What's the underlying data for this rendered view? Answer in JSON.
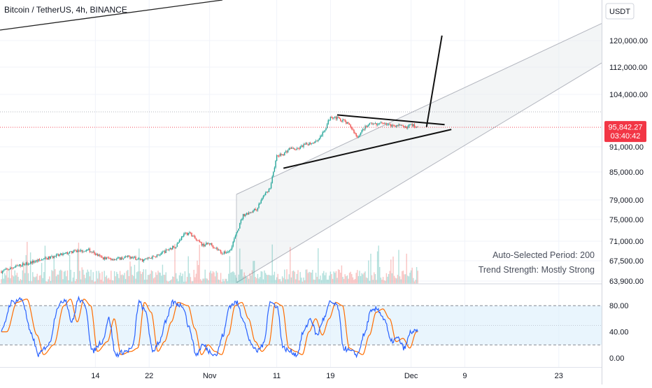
{
  "header": {
    "title": "Bitcoin / TetherUS, 4h, BINANCE",
    "currency_button": "USDT"
  },
  "colors": {
    "bull": "#26a69a",
    "bear": "#ef5350",
    "channel_fill": "#e9ecef",
    "channel_line": "#b2b5be",
    "stoch_k": "#2962ff",
    "stoch_d": "#ff6d00",
    "stoch_band": "#dbeefc",
    "price_line": "#f23645"
  },
  "price_label": {
    "price": "95,842.27",
    "countdown": "03:40:42"
  },
  "notes": {
    "period": "Auto-Selected Period: 200",
    "trend": "Trend Strength: Mostly Strong"
  },
  "chart_data": {
    "type": "candlestick",
    "title": "Bitcoin / TetherUS, 4h, BINANCE",
    "y_axis": {
      "range": [
        63000,
        126000
      ],
      "ticks": [
        {
          "v": 63900,
          "label": "63,900.00"
        },
        {
          "v": 67500,
          "label": "67,500.00"
        },
        {
          "v": 71000,
          "label": "71,000.00"
        },
        {
          "v": 75000,
          "label": "75,000.00"
        },
        {
          "v": 79000,
          "label": "79,000.00"
        },
        {
          "v": 85000,
          "label": "85,000.00"
        },
        {
          "v": 91000,
          "label": "91,000.00"
        },
        {
          "v": 104000,
          "label": "104,000.00"
        },
        {
          "v": 112000,
          "label": "112,000.00"
        },
        {
          "v": 120000,
          "label": "120,000.00"
        }
      ]
    },
    "x_axis": {
      "ticks": [
        {
          "label": "14",
          "d": 14
        },
        {
          "label": "22",
          "d": 22
        },
        {
          "label": "Nov",
          "d": 31
        },
        {
          "label": "11",
          "d": 41
        },
        {
          "label": "19",
          "d": 49
        },
        {
          "label": "Dec",
          "d": 61
        },
        {
          "label": "9",
          "d": 69
        },
        {
          "label": "23",
          "d": 83
        }
      ]
    },
    "price_anchors": [
      [
        0,
        65600
      ],
      [
        3,
        66800
      ],
      [
        6,
        67700
      ],
      [
        9,
        68600
      ],
      [
        11,
        69200
      ],
      [
        13,
        69400
      ],
      [
        15,
        68000
      ],
      [
        17,
        67800
      ],
      [
        19,
        68200
      ],
      [
        21,
        67600
      ],
      [
        23,
        68300
      ],
      [
        25,
        69600
      ],
      [
        26,
        70200
      ],
      [
        27,
        72100
      ],
      [
        28,
        72600
      ],
      [
        29,
        71200
      ],
      [
        30,
        70300
      ],
      [
        31,
        70600
      ],
      [
        32,
        69700
      ],
      [
        33,
        68800
      ],
      [
        34,
        69300
      ],
      [
        35,
        72400
      ],
      [
        36,
        75900
      ],
      [
        37,
        76500
      ],
      [
        38,
        77100
      ],
      [
        39,
        79800
      ],
      [
        40,
        81600
      ],
      [
        41,
        88700
      ],
      [
        42,
        89300
      ],
      [
        43,
        90700
      ],
      [
        44,
        90300
      ],
      [
        45,
        91400
      ],
      [
        46,
        91900
      ],
      [
        47,
        92600
      ],
      [
        48,
        94600
      ],
      [
        49,
        98600
      ],
      [
        50,
        98100
      ],
      [
        51,
        97400
      ],
      [
        52,
        96000
      ],
      [
        53,
        93400
      ],
      [
        54,
        95600
      ],
      [
        55,
        96700
      ],
      [
        56,
        96400
      ],
      [
        57,
        97100
      ],
      [
        58,
        96200
      ],
      [
        59,
        96400
      ],
      [
        60,
        95700
      ],
      [
        61,
        96500
      ],
      [
        62,
        95842
      ]
    ],
    "current_price": 95842.27,
    "channel": {
      "upper": [
        {
          "d": 35,
          "v": 80200
        },
        {
          "d": 88,
          "v": 124000
        }
      ],
      "lower": [
        {
          "d": 35,
          "v": 63600
        },
        {
          "d": 88,
          "v": 112000
        }
      ],
      "start_d": 35
    },
    "triangle_pattern": {
      "upper_trendline": [
        {
          "d": 50,
          "v": 98900
        },
        {
          "d": 66,
          "v": 96500
        }
      ],
      "lower_trendline": [
        {
          "d": 42,
          "v": 85900
        },
        {
          "d": 67,
          "v": 95300
        }
      ],
      "breakout_projection": [
        {
          "d": 63.3,
          "v": 95900
        },
        {
          "d": 65.6,
          "v": 121500
        }
      ]
    },
    "long_term_trendline_visible": true,
    "stochastic": {
      "range": [
        0,
        100
      ],
      "ticks": [
        {
          "v": 80,
          "label": "80.00"
        },
        {
          "v": 40,
          "label": "40.00"
        },
        {
          "v": 0,
          "label": "0.00"
        }
      ],
      "band": [
        20,
        80
      ],
      "midline": 50,
      "k_anchors": [
        [
          0,
          40
        ],
        [
          1.5,
          85
        ],
        [
          3,
          90
        ],
        [
          4.5,
          35
        ],
        [
          5.5,
          5
        ],
        [
          7,
          20
        ],
        [
          8.5,
          80
        ],
        [
          9.5,
          90
        ],
        [
          10.5,
          55
        ],
        [
          11.5,
          90
        ],
        [
          12.5,
          80
        ],
        [
          13.5,
          10
        ],
        [
          15,
          25
        ],
        [
          16,
          60
        ],
        [
          17,
          5
        ],
        [
          18.5,
          10
        ],
        [
          19.5,
          15
        ],
        [
          20.5,
          85
        ],
        [
          21.5,
          70
        ],
        [
          22.5,
          10
        ],
        [
          23.5,
          25
        ],
        [
          24.5,
          55
        ],
        [
          25.5,
          85
        ],
        [
          27,
          80
        ],
        [
          28,
          45
        ],
        [
          29,
          5
        ],
        [
          30,
          20
        ],
        [
          31,
          10
        ],
        [
          32,
          5
        ],
        [
          33,
          35
        ],
        [
          34,
          80
        ],
        [
          35,
          85
        ],
        [
          36,
          60
        ],
        [
          37,
          25
        ],
        [
          38,
          10
        ],
        [
          39,
          20
        ],
        [
          40,
          85
        ],
        [
          41,
          80
        ],
        [
          42,
          15
        ],
        [
          43,
          10
        ],
        [
          44,
          5
        ],
        [
          45,
          40
        ],
        [
          46,
          60
        ],
        [
          47,
          35
        ],
        [
          48,
          60
        ],
        [
          49,
          85
        ],
        [
          50,
          80
        ],
        [
          51,
          15
        ],
        [
          52,
          10
        ],
        [
          53,
          5
        ],
        [
          54,
          35
        ],
        [
          55,
          70
        ],
        [
          56,
          75
        ],
        [
          57,
          60
        ],
        [
          58,
          25
        ],
        [
          59,
          30
        ],
        [
          60,
          15
        ],
        [
          61,
          40
        ],
        [
          62,
          40
        ]
      ],
      "d_lag": 0.8
    }
  }
}
